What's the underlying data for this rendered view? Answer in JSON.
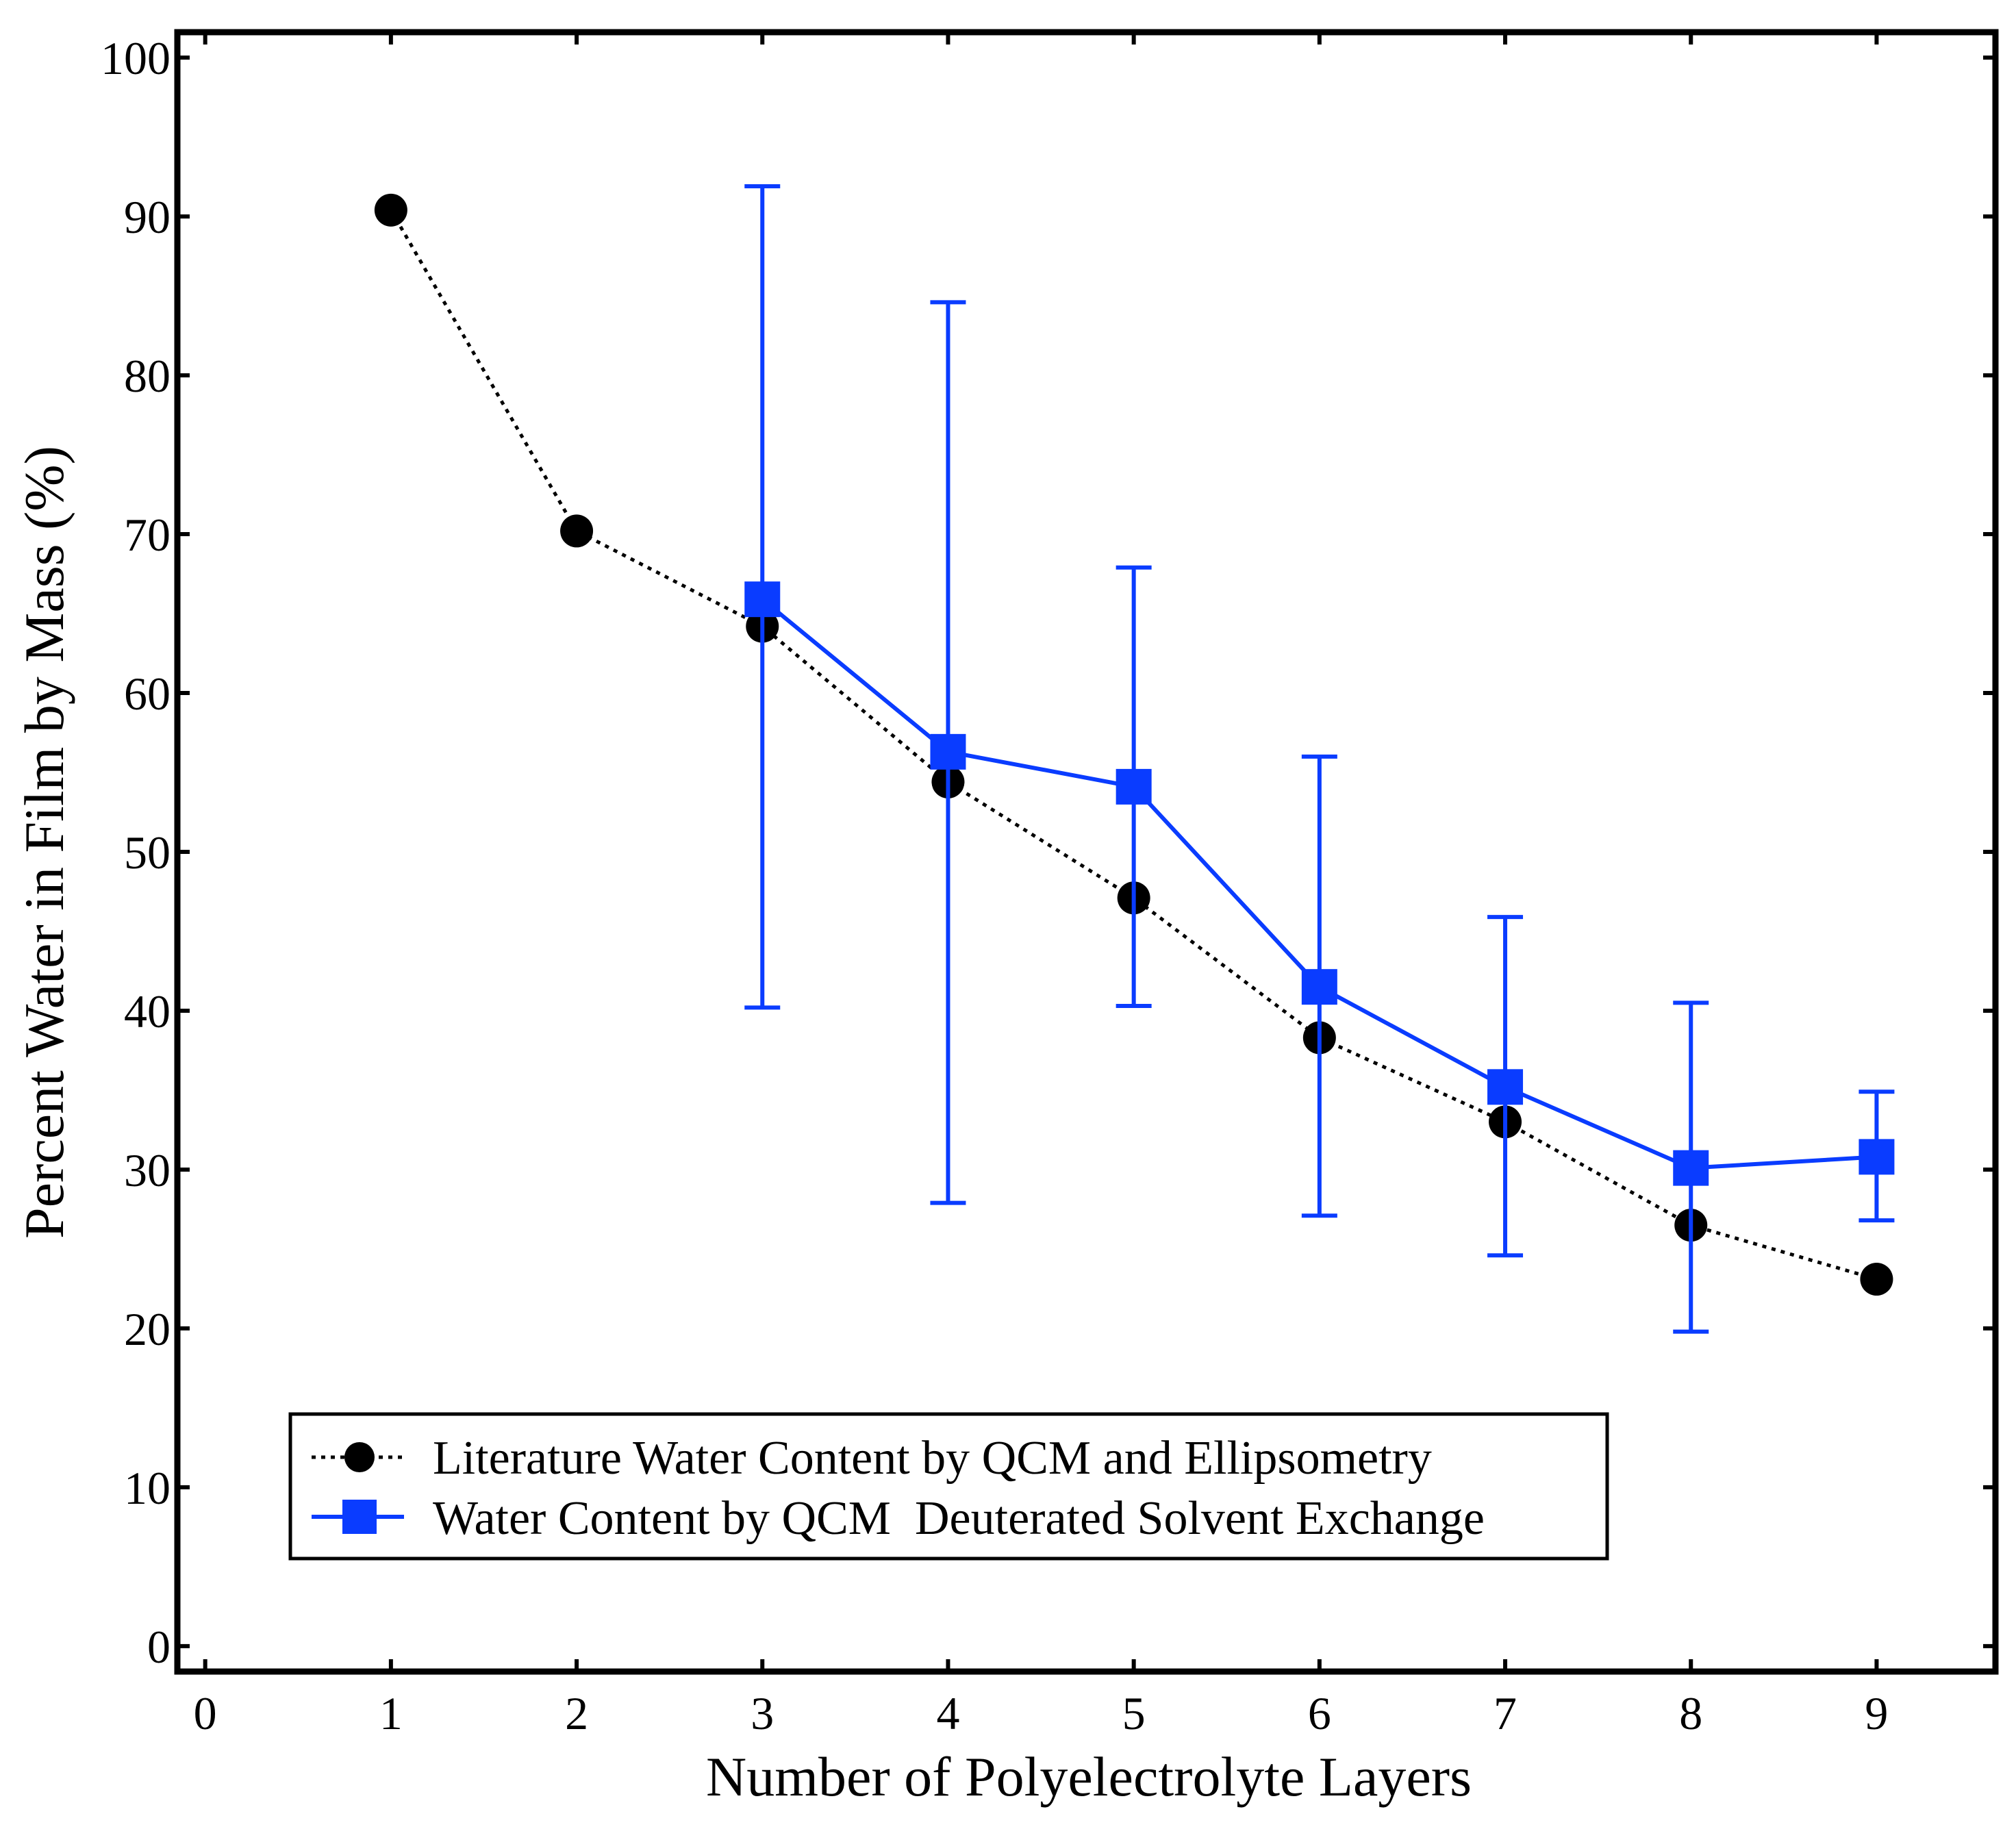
{
  "chart_data": {
    "type": "line",
    "title": "",
    "xlabel": "Number of Polyelectrolyte Layers",
    "ylabel": "Percent Water in Film by Mass (%)",
    "xlim": [
      -0.15,
      9.64
    ],
    "ylim": [
      -1.6,
      101.6
    ],
    "xticks": [
      0,
      1,
      2,
      3,
      4,
      5,
      6,
      7,
      8,
      9
    ],
    "yticks": [
      0,
      10,
      20,
      30,
      40,
      50,
      60,
      70,
      80,
      90,
      100
    ],
    "grid": false,
    "legend_position": "bottom-left",
    "series": [
      {
        "name": "Literature Water Content by QCM and Ellipsometry",
        "color": "#000000",
        "line_style": "dotted",
        "marker": "circle",
        "x": [
          1,
          2,
          3,
          4,
          5,
          6,
          7,
          8,
          9
        ],
        "y": [
          90.4,
          70.2,
          64.2,
          54.4,
          47.1,
          38.3,
          33.0,
          26.5,
          23.1
        ]
      },
      {
        "name": "Water Content by QCM  Deuterated Solvent Exchange",
        "color": "#0a3cff",
        "line_style": "solid",
        "marker": "square",
        "x": [
          3,
          4,
          5,
          6,
          7,
          8,
          9
        ],
        "y": [
          65.9,
          56.3,
          54.1,
          41.5,
          35.2,
          30.1,
          30.8
        ],
        "error_low": [
          40.2,
          27.9,
          40.3,
          27.1,
          24.6,
          19.8,
          26.8
        ],
        "error_high": [
          91.9,
          84.6,
          67.9,
          56.0,
          45.9,
          40.5,
          34.9
        ]
      }
    ]
  }
}
